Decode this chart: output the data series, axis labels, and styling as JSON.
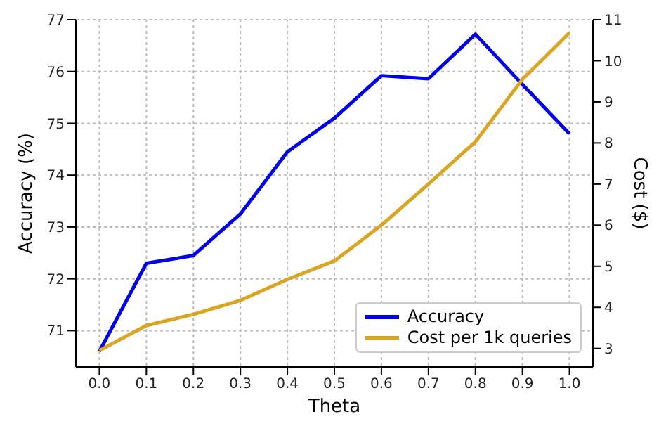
{
  "chart_data": {
    "type": "line",
    "xlabel": "Theta",
    "ylabel": "Accuracy (%)",
    "y2label": "Cost ($)",
    "x": [
      0.0,
      0.1,
      0.2,
      0.3,
      0.4,
      0.5,
      0.6,
      0.7,
      0.8,
      0.9,
      1.0
    ],
    "xlim": [
      -0.05,
      1.05
    ],
    "xticks": [
      {
        "value": 0,
        "label": "0.0"
      },
      0.1,
      0.2,
      0.3,
      0.4,
      0.5,
      0.6,
      0.7,
      0.8,
      0.9,
      {
        "value": 1,
        "label": "1.0"
      }
    ],
    "ylim": [
      70.3,
      77
    ],
    "yticks": [
      71,
      72,
      73,
      74,
      75,
      76,
      77
    ],
    "y2lim": [
      2.55,
      11
    ],
    "y2ticks": [
      3,
      4,
      5,
      6,
      7,
      8,
      9,
      10,
      11
    ],
    "series": [
      {
        "name": "Accuracy",
        "color": "#0000ee",
        "values": [
          70.6,
          72.3,
          72.45,
          73.25,
          74.45,
          75.1,
          75.92,
          75.86,
          76.72,
          75.75,
          74.8
        ]
      },
      {
        "name": "Cost per 1k queries",
        "color": "#daa520",
        "axis": "y2",
        "values": [
          2.95,
          3.56,
          3.83,
          4.17,
          4.68,
          5.13,
          6.0,
          7.0,
          8.03,
          9.55,
          10.68
        ]
      }
    ],
    "grid": true,
    "legend": "bottom right"
  }
}
